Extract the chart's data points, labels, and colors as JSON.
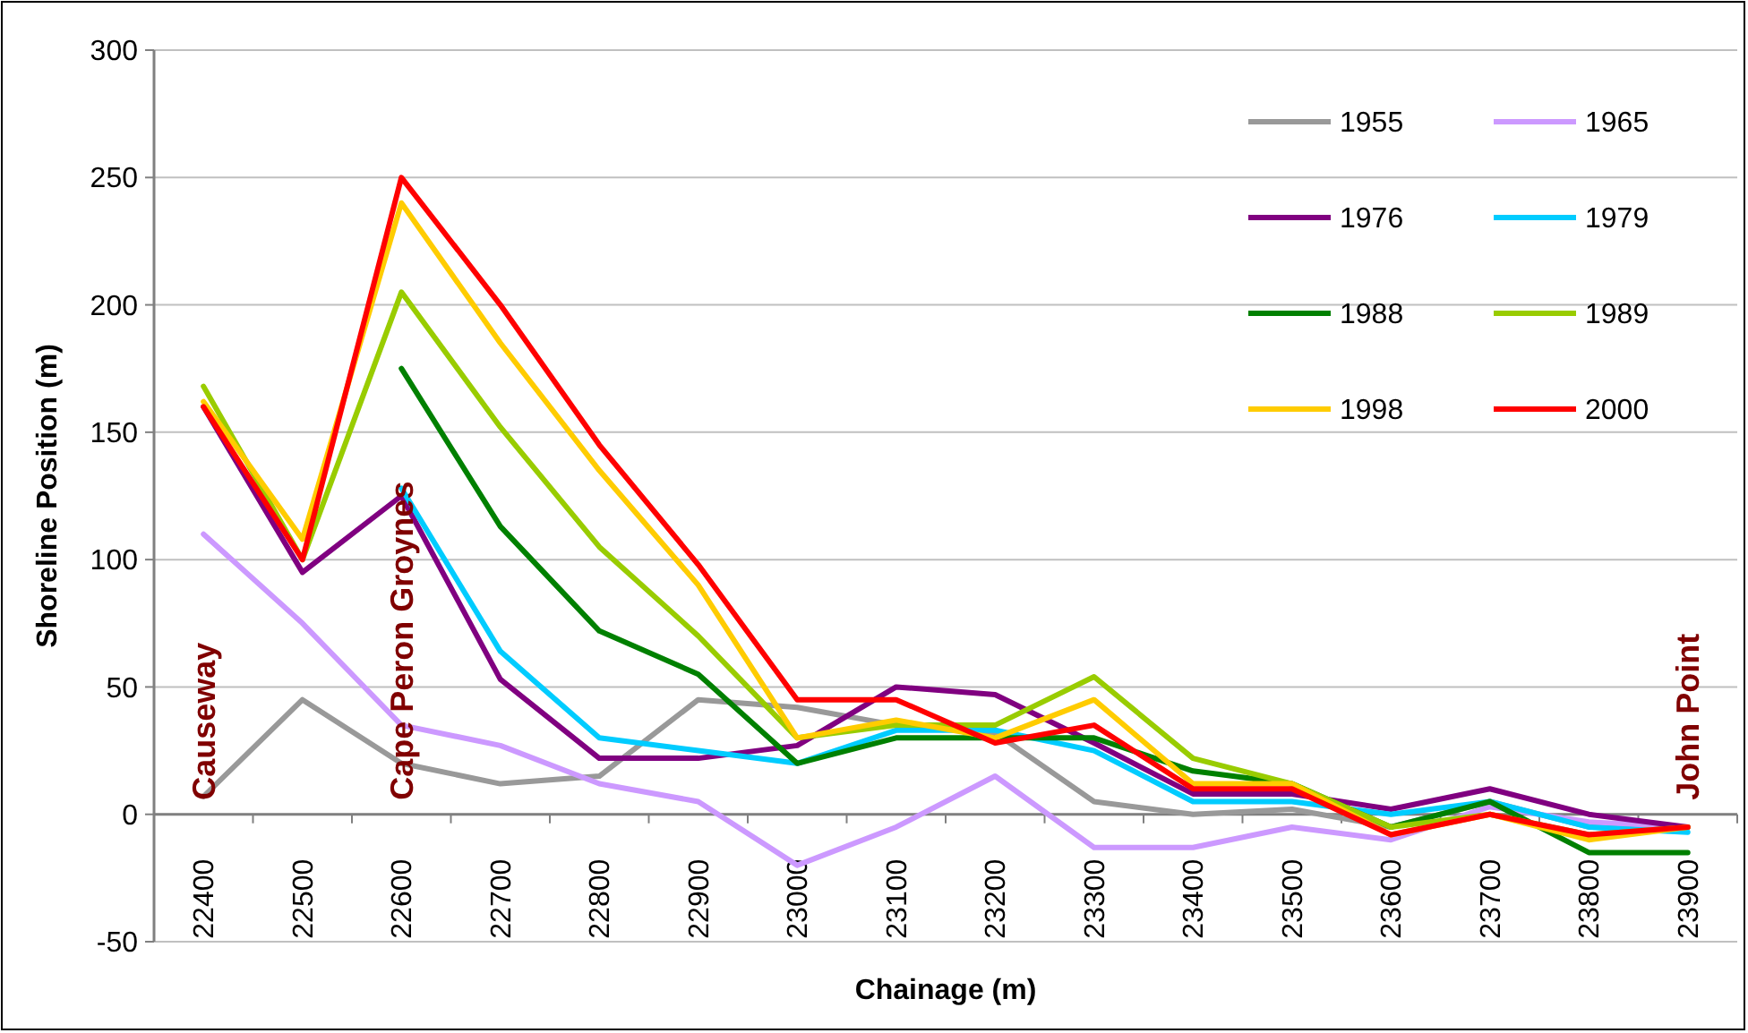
{
  "chart_data": {
    "type": "line",
    "xlabel": "Chainage (m)",
    "ylabel": "Shoreline Position (m)",
    "categories": [
      "22400",
      "22500",
      "22600",
      "22700",
      "22800",
      "22900",
      "23000",
      "23100",
      "23200",
      "23300",
      "23400",
      "23500",
      "23600",
      "23700",
      "23800",
      "23900"
    ],
    "ylim": [
      -50,
      300
    ],
    "yticks": [
      -50,
      0,
      50,
      100,
      150,
      200,
      250,
      300
    ],
    "grid": "y",
    "legend": "top right",
    "marker": "none",
    "line_style": "solid",
    "series": [
      {
        "name": "1955",
        "color": "#999999",
        "values": [
          7,
          45,
          20,
          12,
          15,
          45,
          42,
          35,
          32,
          5,
          0,
          2,
          -5,
          5,
          -5,
          -5
        ]
      },
      {
        "name": "1965",
        "color": "#cc99ff",
        "values": [
          110,
          75,
          35,
          27,
          12,
          5,
          -20,
          -5,
          15,
          -13,
          -13,
          -5,
          -10,
          3,
          -3,
          -5
        ]
      },
      {
        "name": "1976",
        "color": "#800080",
        "values": [
          160,
          95,
          125,
          53,
          22,
          22,
          27,
          50,
          47,
          28,
          8,
          8,
          2,
          10,
          0,
          -5
        ]
      },
      {
        "name": "1979",
        "color": "#00ccff",
        "values": [
          null,
          null,
          128,
          64,
          30,
          25,
          20,
          33,
          33,
          25,
          5,
          5,
          0,
          5,
          -5,
          -7
        ]
      },
      {
        "name": "1988",
        "color": "#008000",
        "values": [
          null,
          null,
          175,
          113,
          72,
          55,
          20,
          30,
          30,
          30,
          17,
          12,
          -5,
          5,
          -15,
          -15
        ]
      },
      {
        "name": "1989",
        "color": "#99cc00",
        "values": [
          168,
          100,
          205,
          152,
          105,
          70,
          30,
          35,
          35,
          54,
          22,
          12,
          -5,
          0,
          -8,
          -5
        ]
      },
      {
        "name": "1998",
        "color": "#ffcc00",
        "values": [
          162,
          108,
          240,
          185,
          135,
          90,
          30,
          37,
          30,
          45,
          12,
          12,
          -8,
          0,
          -10,
          -5
        ]
      },
      {
        "name": "2000",
        "color": "#ff0000",
        "values": [
          160,
          100,
          250,
          200,
          145,
          98,
          45,
          45,
          28,
          35,
          10,
          10,
          -8,
          0,
          -8,
          -5
        ]
      }
    ],
    "annotations": [
      "Causeway",
      "Cape Peron Groynes",
      "John Point"
    ]
  }
}
